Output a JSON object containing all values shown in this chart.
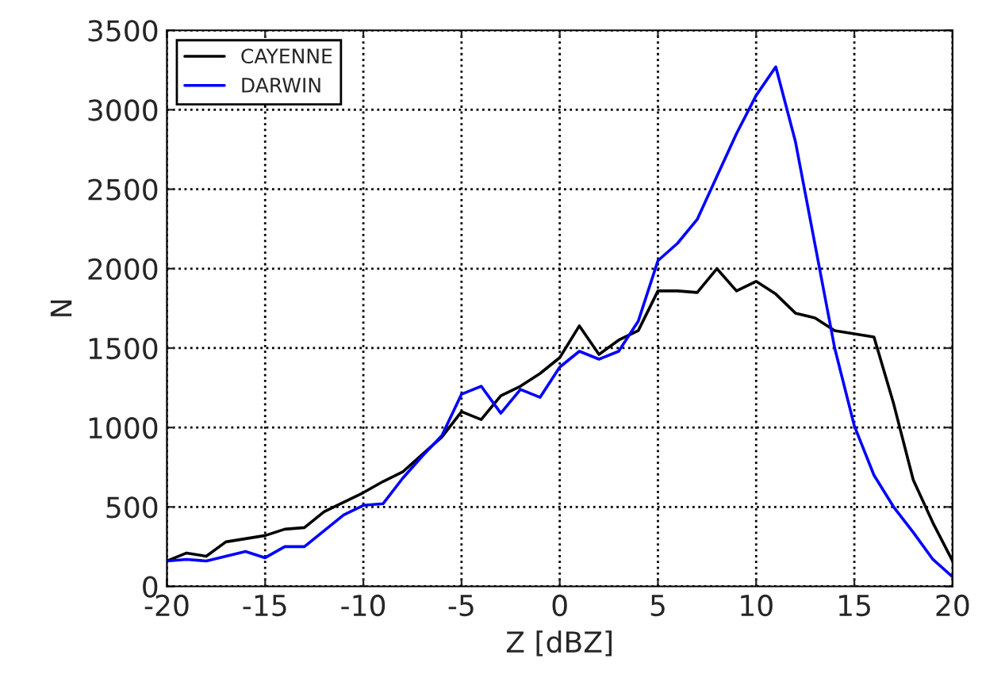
{
  "chart_data": {
    "type": "line",
    "xlabel": "Z [dBZ]",
    "ylabel": "N",
    "x": [
      -20,
      -19,
      -18,
      -17,
      -16,
      -15,
      -14,
      -13,
      -12,
      -11,
      -10,
      -9,
      -8,
      -7,
      -6,
      -5,
      -4,
      -3,
      -2,
      -1,
      0,
      1,
      2,
      3,
      4,
      5,
      6,
      7,
      8,
      9,
      10,
      11,
      12,
      13,
      14,
      15,
      16,
      17,
      18,
      19,
      20
    ],
    "series": [
      {
        "name": "CAYENNE",
        "color": "#000000",
        "values": [
          160,
          210,
          190,
          280,
          300,
          320,
          360,
          370,
          470,
          530,
          590,
          660,
          720,
          830,
          940,
          1100,
          1050,
          1200,
          1260,
          1340,
          1440,
          1640,
          1460,
          1550,
          1610,
          1860,
          1860,
          1850,
          2000,
          1860,
          1920,
          1840,
          1720,
          1690,
          1610,
          1590,
          1570,
          1150,
          670,
          400,
          160
        ]
      },
      {
        "name": "DARWIN",
        "color": "#0000ff",
        "values": [
          160,
          170,
          160,
          190,
          220,
          180,
          250,
          250,
          350,
          450,
          510,
          520,
          680,
          820,
          950,
          1210,
          1260,
          1090,
          1240,
          1190,
          1380,
          1480,
          1430,
          1480,
          1670,
          2050,
          2160,
          2310,
          2580,
          2850,
          3090,
          3270,
          2800,
          2150,
          1500,
          1010,
          700,
          500,
          340,
          170,
          60
        ]
      }
    ],
    "xlim": [
      -20,
      20
    ],
    "xticks": [
      -20,
      -15,
      -10,
      -5,
      0,
      5,
      10,
      15,
      20
    ],
    "ylim": [
      0,
      3500
    ],
    "yticks": [
      0,
      500,
      1000,
      1500,
      2000,
      2500,
      3000,
      3500
    ],
    "grid": true,
    "legend": "top left",
    "line_style": "solid"
  }
}
